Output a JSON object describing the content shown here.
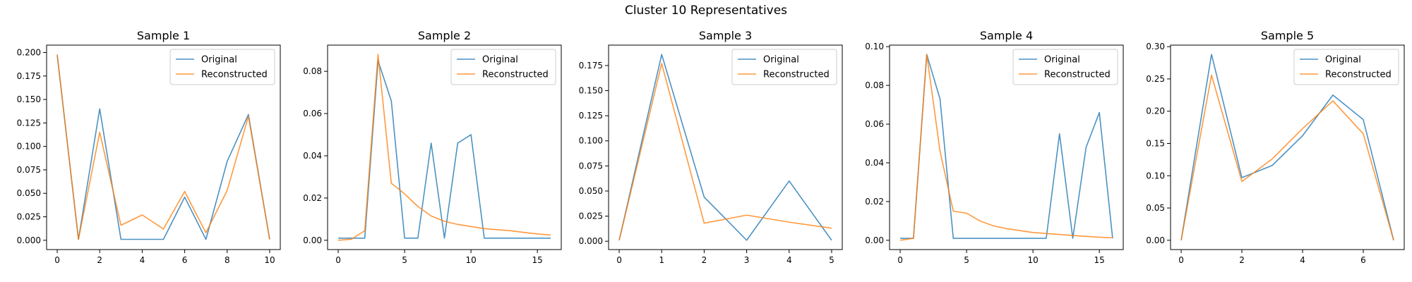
{
  "figure": {
    "title": "Cluster 10 Representatives"
  },
  "colors": {
    "original": "#1f77b4",
    "reconstructed": "#ff7f0e"
  },
  "chart_data": [
    {
      "type": "line",
      "title": "Sample 1",
      "xlim": [
        -0.5,
        10.5
      ],
      "ylim": [
        -0.0099,
        0.2079
      ],
      "xticks": [
        0,
        2,
        4,
        6,
        8,
        10
      ],
      "xtick_labels": [
        "0",
        "2",
        "4",
        "6",
        "8",
        "10"
      ],
      "yticks": [
        0.0,
        0.025,
        0.05,
        0.075,
        0.1,
        0.125,
        0.15,
        0.175,
        0.2
      ],
      "ytick_labels": [
        "0.000",
        "0.025",
        "0.050",
        "0.075",
        "0.100",
        "0.125",
        "0.150",
        "0.175",
        "0.200"
      ],
      "legend": "top-right",
      "series": [
        {
          "name": "Original",
          "color": "#1f77b4",
          "x": [
            0,
            1,
            2,
            3,
            4,
            5,
            6,
            7,
            8,
            9,
            10
          ],
          "y": [
            0.197,
            0.001,
            0.14,
            0.001,
            0.001,
            0.001,
            0.046,
            0.001,
            0.084,
            0.134,
            0.001
          ]
        },
        {
          "name": "Reconstructed",
          "color": "#ff7f0e",
          "x": [
            0,
            1,
            2,
            3,
            4,
            5,
            6,
            7,
            8,
            9,
            10
          ],
          "y": [
            0.198,
            0.001,
            0.115,
            0.016,
            0.027,
            0.012,
            0.052,
            0.008,
            0.053,
            0.132,
            0.001
          ]
        }
      ]
    },
    {
      "type": "line",
      "title": "Sample 2",
      "xlim": [
        -0.8,
        16.8
      ],
      "ylim": [
        -0.0044,
        0.0924
      ],
      "xticks": [
        0,
        5,
        10,
        15
      ],
      "xtick_labels": [
        "0",
        "5",
        "10",
        "15"
      ],
      "yticks": [
        0.0,
        0.02,
        0.04,
        0.06,
        0.08
      ],
      "ytick_labels": [
        "0.00",
        "0.02",
        "0.04",
        "0.06",
        "0.08"
      ],
      "legend": "top-right",
      "series": [
        {
          "name": "Original",
          "color": "#1f77b4",
          "x": [
            0,
            1,
            2,
            3,
            4,
            5,
            6,
            7,
            8,
            9,
            10,
            11,
            12,
            13,
            14,
            15,
            16
          ],
          "y": [
            0.001,
            0.001,
            0.001,
            0.085,
            0.066,
            0.001,
            0.001,
            0.046,
            0.001,
            0.046,
            0.05,
            0.001,
            0.001,
            0.001,
            0.001,
            0.001,
            0.001
          ]
        },
        {
          "name": "Reconstructed",
          "color": "#ff7f0e",
          "x": [
            0,
            1,
            2,
            3,
            4,
            5,
            6,
            7,
            8,
            9,
            10,
            11,
            12,
            13,
            14,
            15,
            16
          ],
          "y": [
            0.0,
            0.0005,
            0.0045,
            0.088,
            0.027,
            0.022,
            0.016,
            0.0115,
            0.009,
            0.0075,
            0.0065,
            0.0055,
            0.005,
            0.0045,
            0.0037,
            0.003,
            0.0025
          ]
        }
      ]
    },
    {
      "type": "line",
      "title": "Sample 3",
      "xlim": [
        -0.25,
        5.25
      ],
      "ylim": [
        -0.0083,
        0.1953
      ],
      "xticks": [
        0,
        1,
        2,
        3,
        4,
        5
      ],
      "xtick_labels": [
        "0",
        "1",
        "2",
        "3",
        "4",
        "5"
      ],
      "yticks": [
        0.0,
        0.025,
        0.05,
        0.075,
        0.1,
        0.125,
        0.15,
        0.175
      ],
      "ytick_labels": [
        "0.000",
        "0.025",
        "0.050",
        "0.075",
        "0.100",
        "0.125",
        "0.150",
        "0.175"
      ],
      "legend": "top-right",
      "series": [
        {
          "name": "Original",
          "color": "#1f77b4",
          "x": [
            0,
            1,
            2,
            3,
            4,
            5
          ],
          "y": [
            0.001,
            0.186,
            0.044,
            0.001,
            0.06,
            0.001
          ]
        },
        {
          "name": "Reconstructed",
          "color": "#ff7f0e",
          "x": [
            0,
            1,
            2,
            3,
            4,
            5
          ],
          "y": [
            0.001,
            0.177,
            0.018,
            0.026,
            0.019,
            0.013
          ]
        }
      ]
    },
    {
      "type": "line",
      "title": "Sample 4",
      "xlim": [
        -0.8,
        16.8
      ],
      "ylim": [
        -0.0048,
        0.1008
      ],
      "xticks": [
        0,
        5,
        10,
        15
      ],
      "xtick_labels": [
        "0",
        "5",
        "10",
        "15"
      ],
      "yticks": [
        0.0,
        0.02,
        0.04,
        0.06,
        0.08,
        0.1
      ],
      "ytick_labels": [
        "0.00",
        "0.02",
        "0.04",
        "0.06",
        "0.08",
        "0.10"
      ],
      "legend": "top-right",
      "series": [
        {
          "name": "Original",
          "color": "#1f77b4",
          "x": [
            0,
            1,
            2,
            3,
            4,
            5,
            6,
            7,
            8,
            9,
            10,
            11,
            12,
            13,
            14,
            15,
            16
          ],
          "y": [
            0.001,
            0.001,
            0.096,
            0.073,
            0.001,
            0.001,
            0.001,
            0.001,
            0.001,
            0.001,
            0.001,
            0.001,
            0.055,
            0.001,
            0.048,
            0.066,
            0.001
          ]
        },
        {
          "name": "Reconstructed",
          "color": "#ff7f0e",
          "x": [
            0,
            1,
            2,
            3,
            4,
            5,
            6,
            7,
            8,
            9,
            10,
            11,
            12,
            13,
            14,
            15,
            16
          ],
          "y": [
            0.0,
            0.001,
            0.096,
            0.046,
            0.015,
            0.014,
            0.01,
            0.0075,
            0.006,
            0.005,
            0.004,
            0.0035,
            0.003,
            0.0025,
            0.002,
            0.0016,
            0.0013
          ]
        }
      ]
    },
    {
      "type": "line",
      "title": "Sample 5",
      "xlim": [
        -0.35,
        7.35
      ],
      "ylim": [
        -0.0144,
        0.3024
      ],
      "xticks": [
        0,
        2,
        4,
        6
      ],
      "xtick_labels": [
        "0",
        "2",
        "4",
        "6"
      ],
      "yticks": [
        0.0,
        0.05,
        0.1,
        0.15,
        0.2,
        0.25,
        0.3
      ],
      "ytick_labels": [
        "0.00",
        "0.05",
        "0.10",
        "0.15",
        "0.20",
        "0.25",
        "0.30"
      ],
      "legend": "top-right",
      "series": [
        {
          "name": "Original",
          "color": "#1f77b4",
          "x": [
            0,
            1,
            2,
            3,
            4,
            5,
            6,
            7
          ],
          "y": [
            0.0,
            0.288,
            0.097,
            0.116,
            0.162,
            0.225,
            0.187,
            0.0
          ]
        },
        {
          "name": "Reconstructed",
          "color": "#ff7f0e",
          "x": [
            0,
            1,
            2,
            3,
            4,
            5,
            6,
            7
          ],
          "y": [
            0.0,
            0.256,
            0.091,
            0.126,
            0.173,
            0.216,
            0.165,
            0.0
          ]
        }
      ]
    }
  ]
}
